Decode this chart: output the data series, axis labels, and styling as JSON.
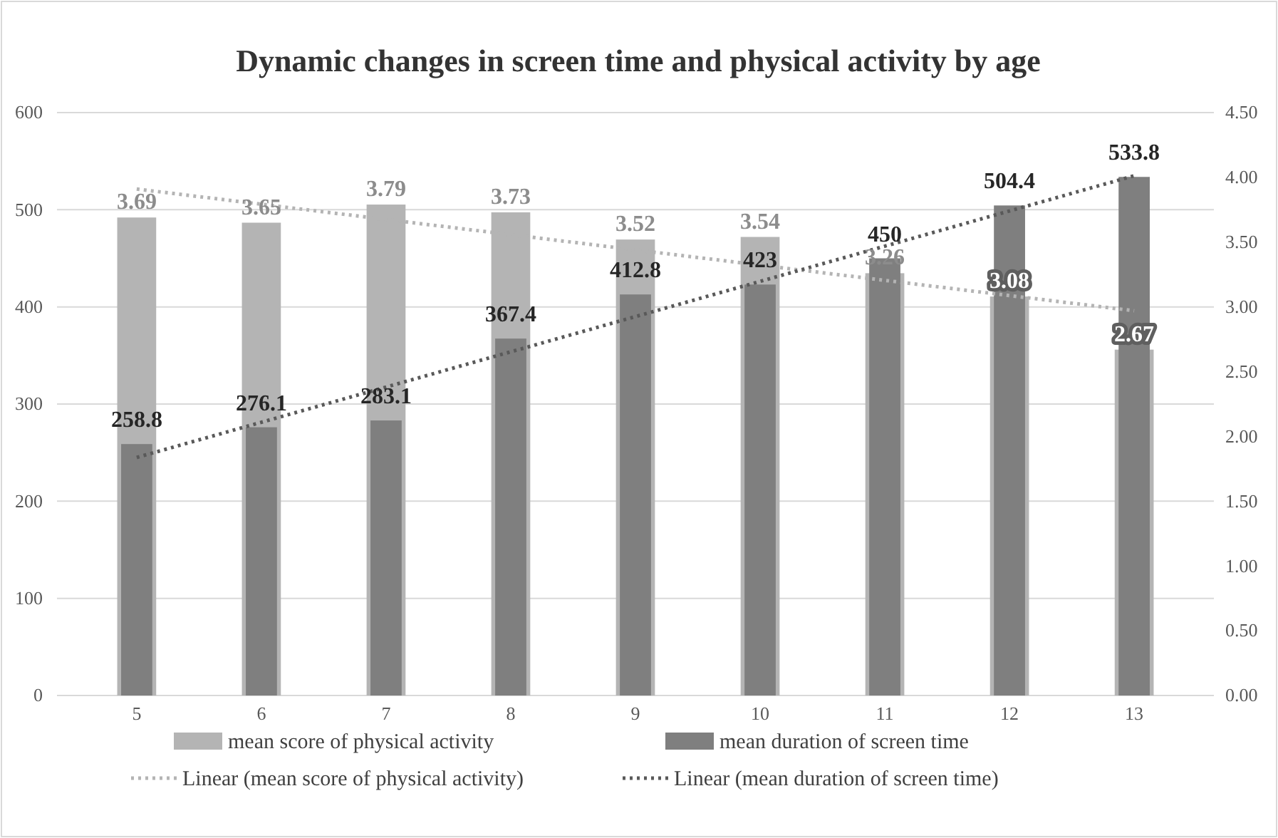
{
  "chart_data": {
    "type": "bar",
    "title": "Dynamic changes in screen time and physical activity by age",
    "categories": [
      "5",
      "6",
      "7",
      "8",
      "9",
      "10",
      "11",
      "12",
      "13"
    ],
    "series": [
      {
        "name": "mean score of physical activity",
        "axis": "y2",
        "color": "#b4b4b4",
        "values": [
          3.69,
          3.65,
          3.79,
          3.73,
          3.52,
          3.54,
          3.26,
          3.08,
          2.67
        ],
        "value_labels": [
          "3.69",
          "3.65",
          "3.79",
          "3.73",
          "3.52",
          "3.54",
          "3.26",
          "3.08",
          "2.67"
        ]
      },
      {
        "name": "mean duration of screen time",
        "color": "#7f7f7f",
        "values": [
          258.8,
          276.1,
          283.1,
          367.4,
          412.8,
          423,
          450,
          504.4,
          533.8
        ],
        "value_labels": [
          "258.8",
          "276.1",
          "283.1",
          "367.4",
          "412.8",
          "423",
          "450",
          "504.4",
          "533.8"
        ]
      },
      {
        "name": "Linear (mean score of physical activity)",
        "type": "line",
        "axis": "y2",
        "color": "#b4b4b4",
        "x": [
          "5",
          "13"
        ],
        "values": [
          3.91,
          2.97
        ]
      },
      {
        "name": "Linear (mean duration of screen time)",
        "type": "line",
        "color": "#595959",
        "x": [
          "5",
          "13"
        ],
        "values": [
          245,
          535
        ]
      }
    ],
    "ylim": [
      0,
      600
    ],
    "yticks": [
      0,
      100,
      200,
      300,
      400,
      500,
      600
    ],
    "y2lim": [
      0,
      4.5
    ],
    "y2ticks": [
      {
        "value": 0,
        "label": "0.00"
      },
      {
        "value": 0.5,
        "label": "0.50"
      },
      {
        "value": 1,
        "label": "1.00"
      },
      {
        "value": 1.5,
        "label": "1.50"
      },
      {
        "value": 2,
        "label": "2.00"
      },
      {
        "value": 2.5,
        "label": "2.50"
      },
      {
        "value": 3,
        "label": "3.00"
      },
      {
        "value": 3.5,
        "label": "3.50"
      },
      {
        "value": 4,
        "label": "4.00"
      },
      {
        "value": 4.5,
        "label": "4.50"
      }
    ],
    "grid": "y",
    "legend": "bottom",
    "line_style": "dotted",
    "marker": "none"
  }
}
